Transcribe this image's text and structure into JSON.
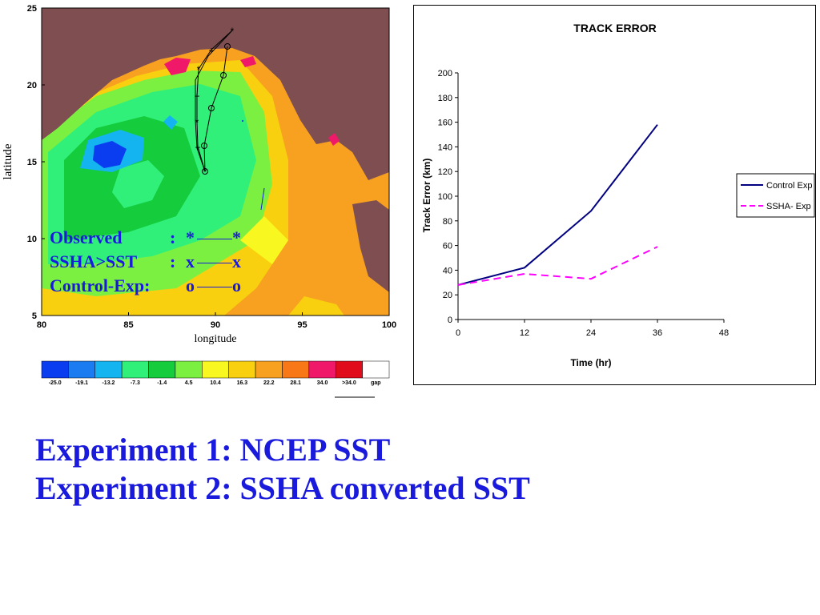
{
  "map": {
    "latitude_label": "latitude",
    "longitude_label": "longitude",
    "lat_ticks": [
      "25",
      "20",
      "15",
      "10",
      "5"
    ],
    "lon_ticks": [
      "80",
      "85",
      "90",
      "95",
      "100"
    ],
    "colorbar_labels": [
      "-25.0",
      "-19.1",
      "-13.2",
      "-7.3",
      "-1.4",
      "4.5",
      "10.4",
      "16.3",
      "22.2",
      "28.1",
      "34.0",
      ">34.0",
      "gap"
    ],
    "colorbar_colors": [
      "#0a3cf0",
      "#1a7cf0",
      "#14b4f0",
      "#30f07a",
      "#14cc3c",
      "#7cf040",
      "#f8f820",
      "#f8d010",
      "#f8a020",
      "#f87818",
      "#f01868",
      "#e00c1c",
      "#ffffff"
    ],
    "land_color": "#7e4e50",
    "legend": {
      "observed_label": "Observed",
      "observed_marker": "*",
      "ssha_label": "SSHA>SST",
      "ssha_marker": "x",
      "control_label": "Control-Exp:",
      "control_marker": "o",
      "separator": ":"
    }
  },
  "chart_data": {
    "type": "line",
    "title": "TRACK ERROR",
    "xlabel": "Time (hr)",
    "ylabel": "Track Error (km)",
    "x": [
      0,
      12,
      24,
      36
    ],
    "xticks": [
      "0",
      "12",
      "24",
      "36",
      "48"
    ],
    "yticks": [
      "0",
      "20",
      "40",
      "60",
      "80",
      "100",
      "120",
      "140",
      "160",
      "180",
      "200"
    ],
    "xlim": [
      0,
      48
    ],
    "ylim": [
      0,
      200
    ],
    "grid": false,
    "legend_position": "right",
    "series": [
      {
        "name": "Control Exp",
        "values": [
          28,
          42,
          88,
          158
        ],
        "color": "#000080",
        "style": "solid"
      },
      {
        "name": "SSHA- Exp",
        "values": [
          28,
          37,
          33,
          59
        ],
        "color": "#ff00ff",
        "style": "dashed"
      }
    ]
  },
  "captions": {
    "line1": "Experiment 1: NCEP SST",
    "line2": "Experiment 2: SSHA converted SST"
  }
}
